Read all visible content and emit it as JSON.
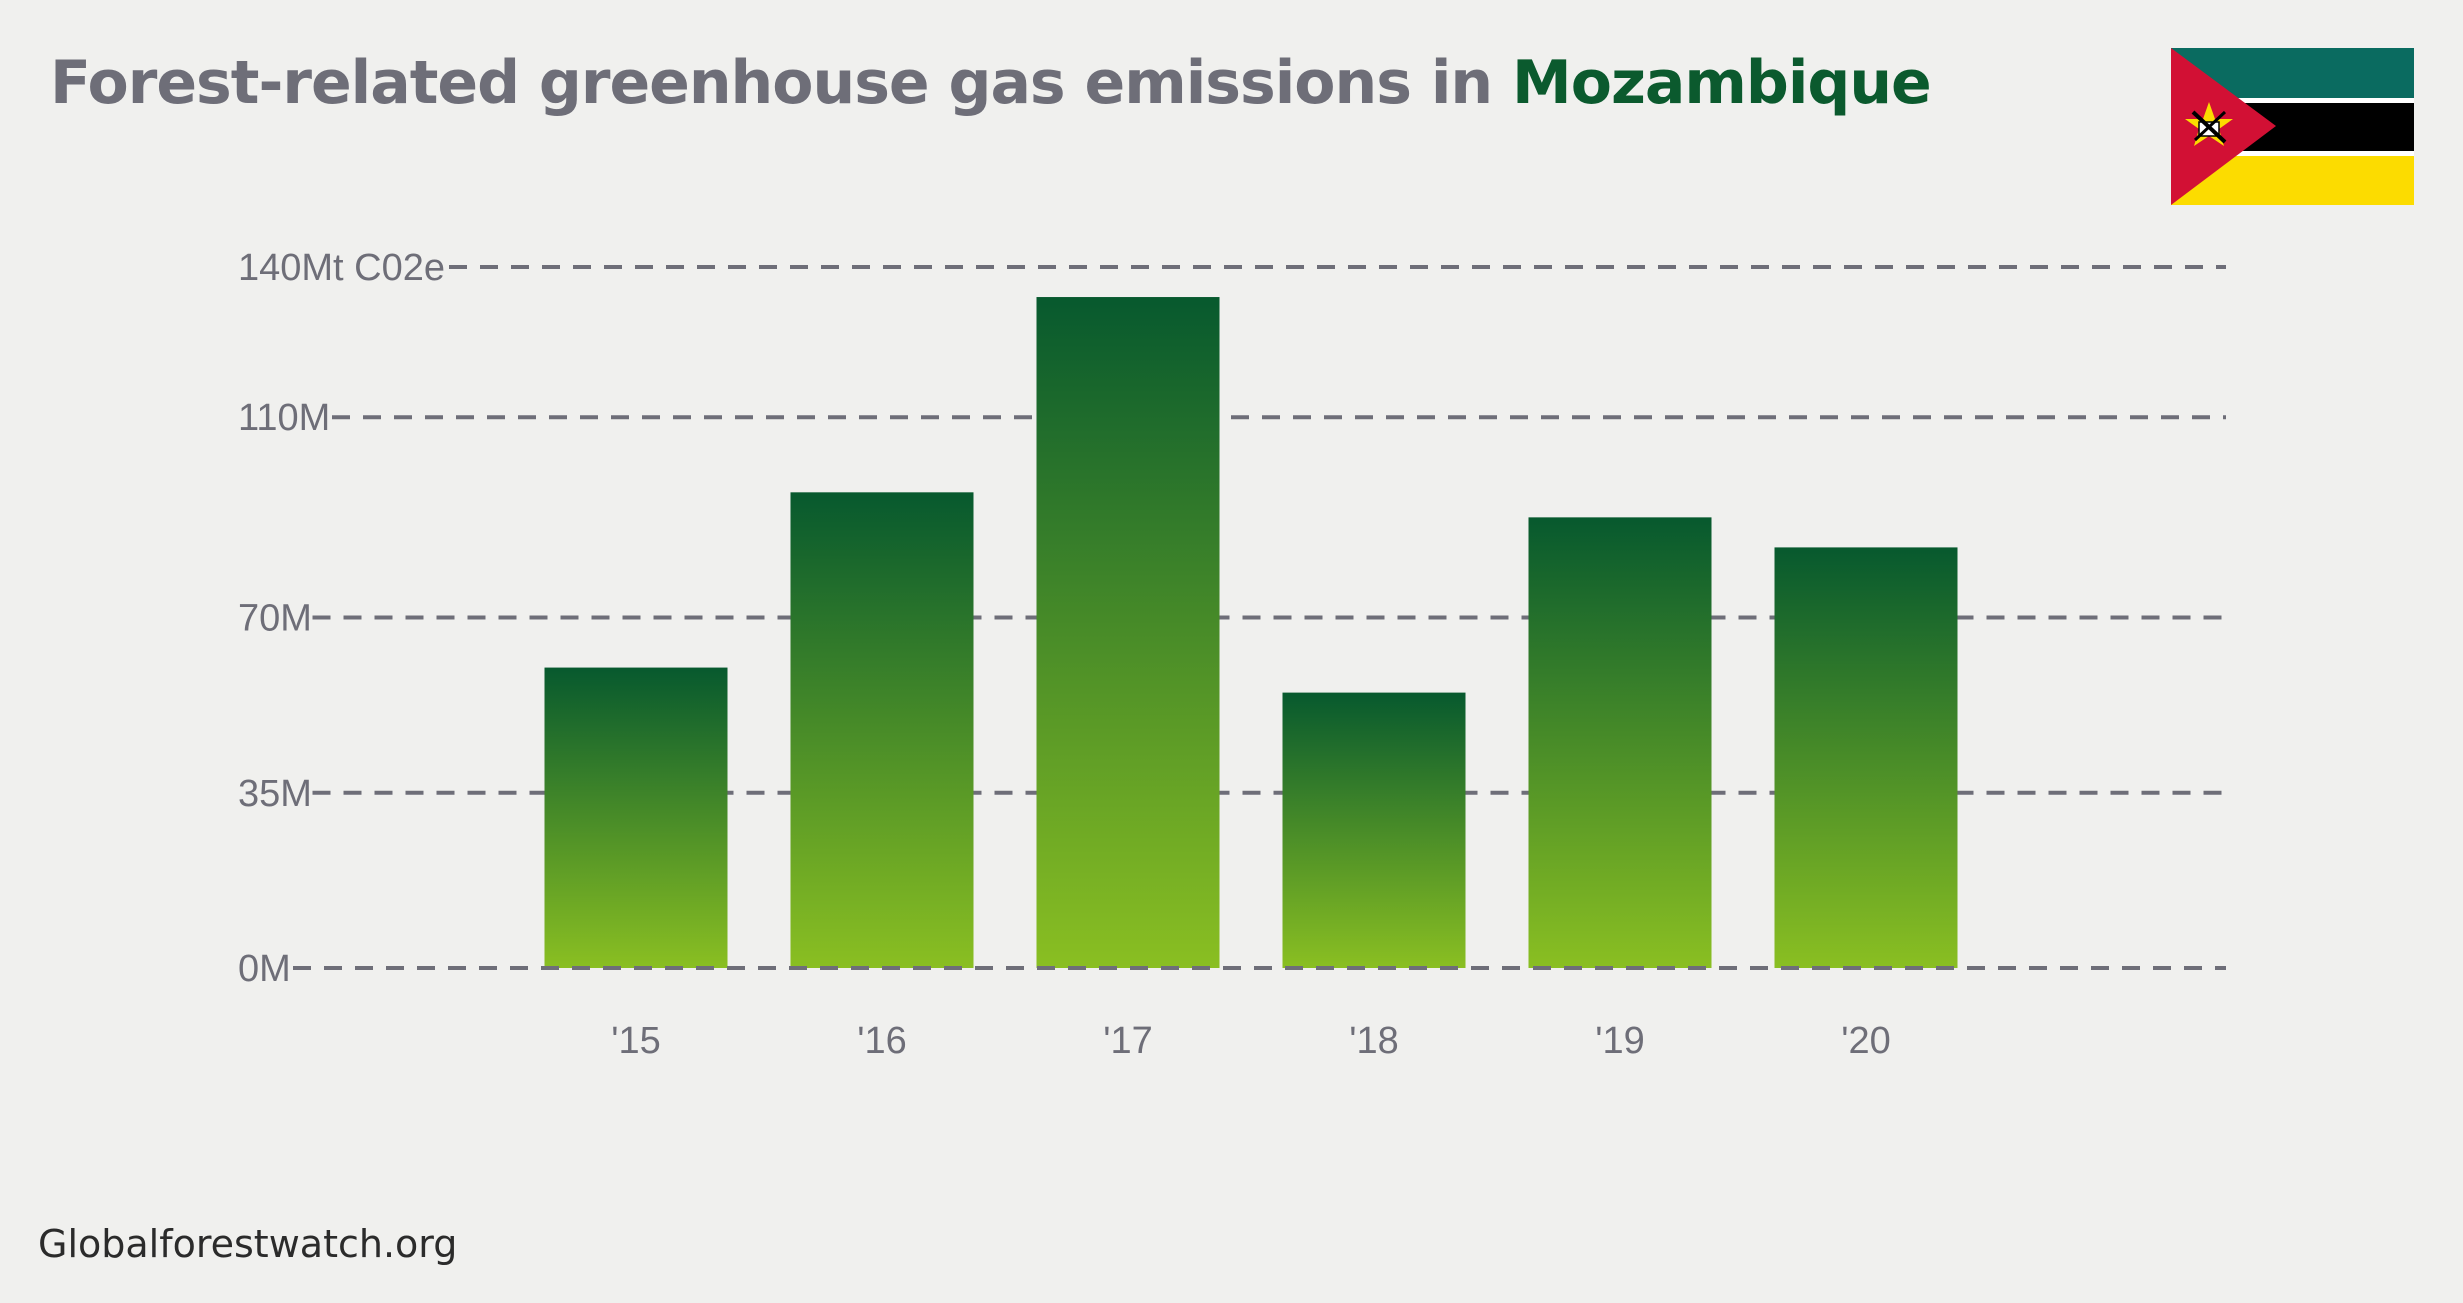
{
  "header": {
    "title_prefix": "Forest-related greenhouse gas emissions in ",
    "title_country": "Mozambique"
  },
  "flag": {
    "icon": "mozambique-flag-icon",
    "colors": {
      "green": "#0a6b60",
      "black": "#000000",
      "yellow": "#fcdc00",
      "red": "#d21034",
      "white": "#ffffff"
    }
  },
  "source": "Globalforestwatch.org",
  "colors": {
    "bar_top": "#07592e",
    "bar_bottom": "#8abf22",
    "grid": "#6e6e78",
    "tick_text": "#6e6e78"
  },
  "chart_data": {
    "type": "bar",
    "title": "Forest-related greenhouse gas emissions in Mozambique",
    "categories": [
      "'15",
      "'16",
      "'17",
      "'18",
      "'19",
      "'20"
    ],
    "values": [
      60,
      95,
      134,
      55,
      90,
      84
    ],
    "ytick_values": [
      0,
      35,
      70,
      110,
      140
    ],
    "ytick_labels": [
      "0M",
      "35M",
      "70M",
      "110M",
      "140Mt C02e"
    ],
    "ylim": [
      0,
      140
    ],
    "grid": true,
    "grid_style": "dashed"
  }
}
